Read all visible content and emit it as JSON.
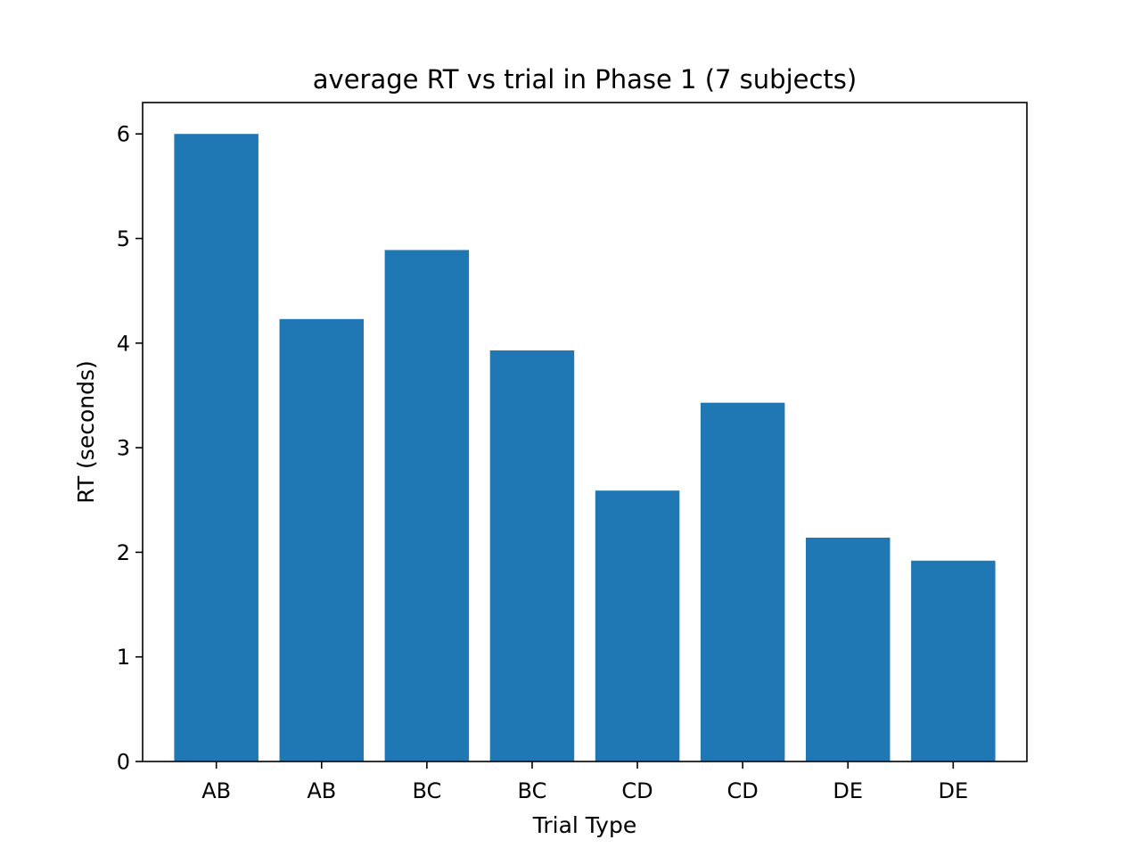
{
  "chart_data": {
    "type": "bar",
    "title": "average RT vs trial in Phase 1 (7 subjects)",
    "xlabel": "Trial Type",
    "ylabel": "RT (seconds)",
    "categories": [
      "AB",
      "AB",
      "BC",
      "BC",
      "CD",
      "CD",
      "DE",
      "DE"
    ],
    "values": [
      6.0,
      4.23,
      4.89,
      3.93,
      2.59,
      3.43,
      2.14,
      1.92
    ],
    "ylim": [
      0,
      6.3
    ],
    "yticks": [
      0,
      1,
      2,
      3,
      4,
      5,
      6
    ],
    "grid": false,
    "bar_color": "#1f77b4"
  }
}
